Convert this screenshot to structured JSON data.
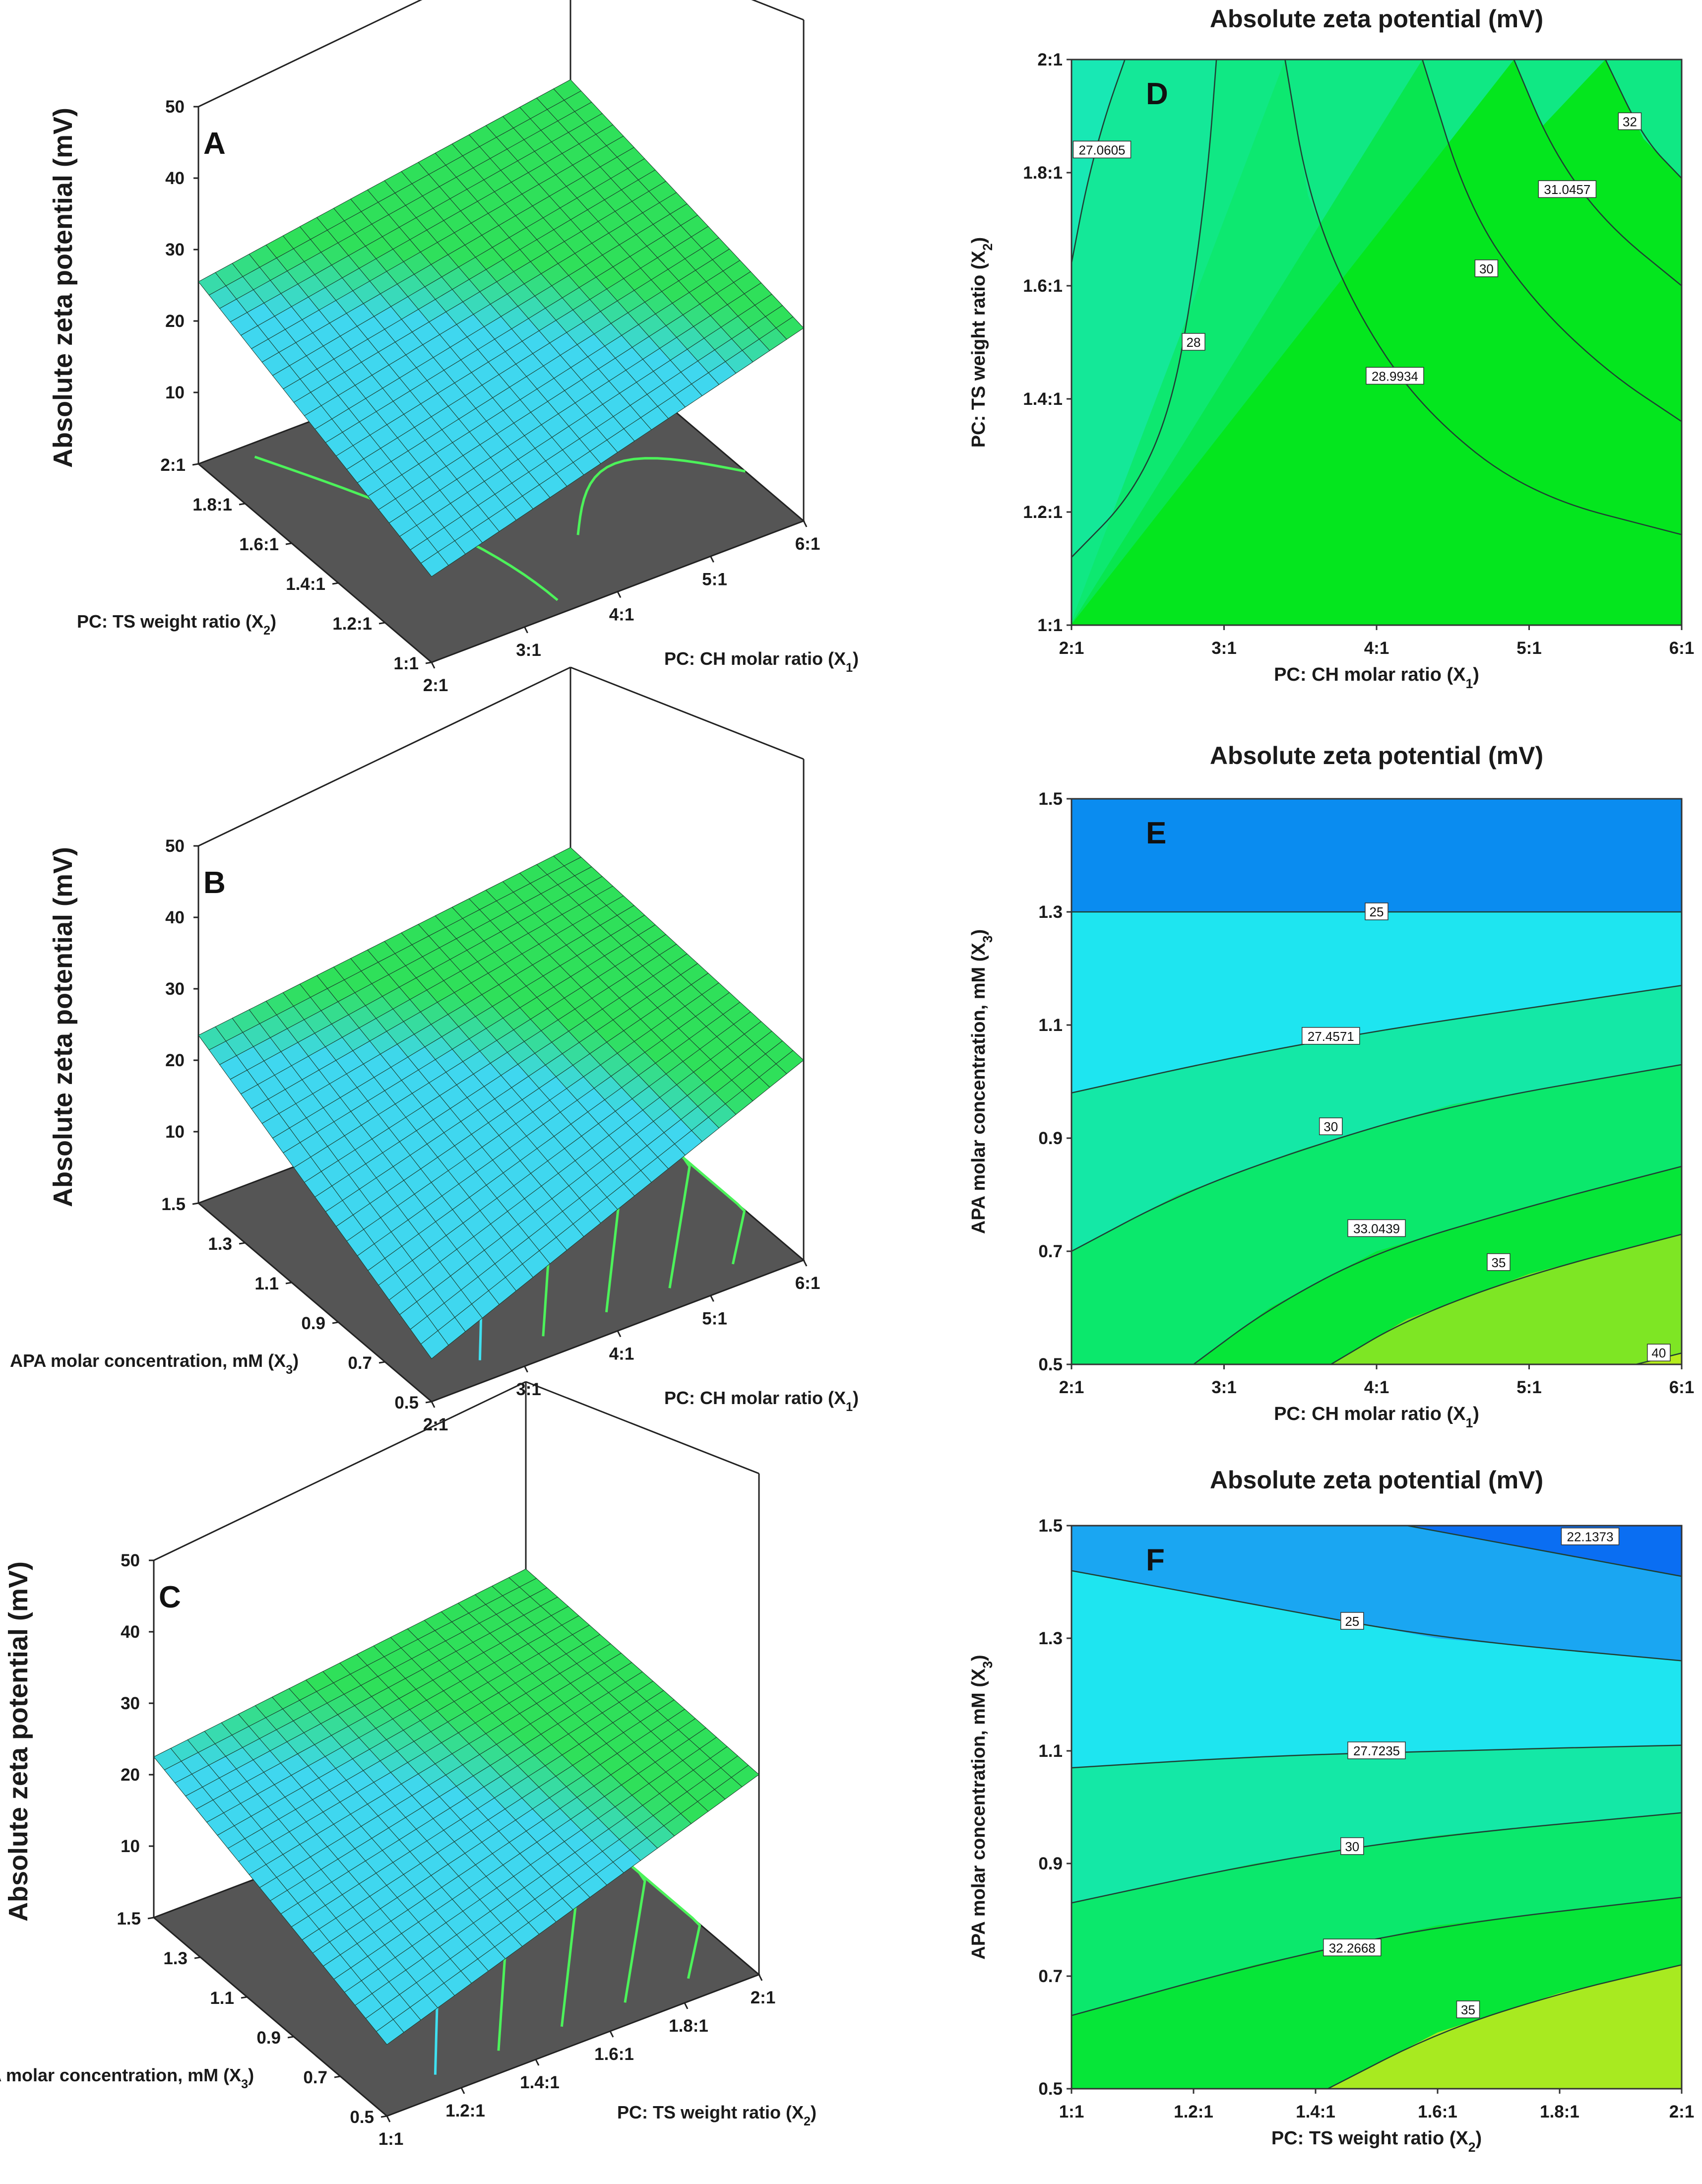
{
  "chart_data": [
    {
      "id": "A",
      "type": "surface3d",
      "panel_label": "A",
      "zlabel": "Absolute zeta potential (mV)",
      "z_ticks": [
        "10",
        "20",
        "30",
        "40",
        "50"
      ],
      "zlim": [
        0,
        50
      ],
      "x_label": "PC: CH molar ratio (X",
      "x_sub": "1",
      "x_tail": ")",
      "x_ticks": [
        "2:1",
        "3:1",
        "4:1",
        "5:1",
        "6:1"
      ],
      "y_label": "PC: TS weight ratio (X",
      "y_sub": "2",
      "y_tail": ")",
      "y_ticks": [
        "2:1",
        "1.8:1",
        "1.6:1",
        "1.4:1",
        "1.2:1",
        "1:1"
      ],
      "corner_z": {
        "front": 12.0,
        "left": 25.5,
        "right": 27.0,
        "back": 34.0
      },
      "colors": {
        "low": "#3fd7ef",
        "high": "#2fe05a",
        "floor": "#555555",
        "contour_low": "#3fe0f0",
        "contour_high": "#4cf25a"
      }
    },
    {
      "id": "B",
      "type": "surface3d",
      "panel_label": "B",
      "zlabel": "Absolute zeta potential (mV)",
      "z_ticks": [
        "10",
        "20",
        "30",
        "40",
        "50"
      ],
      "zlim": [
        0,
        50
      ],
      "x_label": "PC: CH molar ratio (X",
      "x_sub": "1",
      "x_tail": ")",
      "x_ticks": [
        "2:1",
        "3:1",
        "4:1",
        "5:1",
        "6:1"
      ],
      "y_label": "APA molar concentration, mM (X",
      "y_sub": "3",
      "y_tail": ")",
      "y_ticks": [
        "1.5",
        "1.3",
        "1.1",
        "0.9",
        "0.7",
        "0.5"
      ],
      "corner_z": {
        "front": 6.0,
        "left": 23.5,
        "right": 28.0,
        "back": 30.0
      },
      "colors": {
        "low": "#3fd7ef",
        "high": "#2fe05a",
        "floor": "#555555",
        "contour_low": "#3fe0f0",
        "contour_high": "#4cf25a"
      }
    },
    {
      "id": "C",
      "type": "surface3d",
      "panel_label": "C",
      "zlabel": "Absolute zeta potential (mV)",
      "z_ticks": [
        "10",
        "20",
        "30",
        "40",
        "50"
      ],
      "zlim": [
        0,
        50
      ],
      "x_label": "PC: TS weight ratio (X",
      "x_sub": "2",
      "x_tail": ")",
      "x_ticks": [
        "1:1",
        "1.2:1",
        "1.4:1",
        "1.6:1",
        "1.8:1",
        "2:1"
      ],
      "y_label": "APA molar concentration, mM (X",
      "y_sub": "3",
      "y_tail": ")",
      "y_ticks": [
        "1.5",
        "1.3",
        "1.1",
        "0.9",
        "0.7",
        "0.5"
      ],
      "corner_z": {
        "front": 10.0,
        "left": 22.5,
        "right": 28.0,
        "back": 29.0
      },
      "colors": {
        "low": "#3fd7ef",
        "high": "#2fe05a",
        "floor": "#555555",
        "contour_low": "#3fe0f0",
        "contour_high": "#4cf25a"
      }
    },
    {
      "id": "D",
      "type": "contour",
      "panel_label": "D",
      "title": "Absolute zeta potential (mV)",
      "xlabel": "PC: CH molar ratio (X",
      "x_sub": "1",
      "x_tail": ")",
      "ylabel": "PC: TS weight ratio (X",
      "y_sub": "2",
      "y_tail": ")",
      "xlim": [
        2,
        6
      ],
      "ylim": [
        1,
        2
      ],
      "x_ticks": [
        {
          "v": 2,
          "t": "2:1"
        },
        {
          "v": 3,
          "t": "3:1"
        },
        {
          "v": 4,
          "t": "4:1"
        },
        {
          "v": 5,
          "t": "5:1"
        },
        {
          "v": 6,
          "t": "6:1"
        }
      ],
      "y_ticks": [
        {
          "v": 1,
          "t": "1:1"
        },
        {
          "v": 1.2,
          "t": "1.2:1"
        },
        {
          "v": 1.4,
          "t": "1.4:1"
        },
        {
          "v": 1.6,
          "t": "1.6:1"
        },
        {
          "v": 1.8,
          "t": "1.8:1"
        },
        {
          "v": 2,
          "t": "2:1"
        }
      ],
      "contours": [
        {
          "level": "27.0605",
          "label_at": [
            2.2,
            1.84
          ],
          "points": [
            [
              2.0,
              1.64
            ],
            [
              2.1,
              1.78
            ],
            [
              2.22,
              1.9
            ],
            [
              2.35,
              2.0
            ]
          ]
        },
        {
          "level": "28",
          "label_at": [
            2.8,
            1.5
          ],
          "points": [
            [
              2.0,
              1.12
            ],
            [
              2.4,
              1.23
            ],
            [
              2.65,
              1.38
            ],
            [
              2.8,
              1.6
            ],
            [
              2.9,
              1.82
            ],
            [
              2.95,
              2.0
            ]
          ]
        },
        {
          "level": "28.9934",
          "label_at": [
            4.12,
            1.44
          ],
          "points": [
            [
              3.4,
              2.0
            ],
            [
              3.55,
              1.76
            ],
            [
              3.85,
              1.56
            ],
            [
              4.3,
              1.38
            ],
            [
              5.0,
              1.23
            ],
            [
              6.0,
              1.16
            ]
          ]
        },
        {
          "level": "30",
          "label_at": [
            4.72,
            1.63
          ],
          "points": [
            [
              4.3,
              2.0
            ],
            [
              4.6,
              1.74
            ],
            [
              5.0,
              1.58
            ],
            [
              5.5,
              1.45
            ],
            [
              6.0,
              1.36
            ]
          ]
        },
        {
          "level": "31.0457",
          "label_at": [
            5.25,
            1.77
          ],
          "points": [
            [
              4.9,
              2.0
            ],
            [
              5.15,
              1.84
            ],
            [
              5.5,
              1.71
            ],
            [
              6.0,
              1.6
            ]
          ]
        },
        {
          "level": "32",
          "label_at": [
            5.66,
            1.89
          ],
          "points": [
            [
              5.5,
              2.0
            ],
            [
              5.75,
              1.86
            ],
            [
              6.0,
              1.79
            ]
          ]
        }
      ],
      "bands": [
        "#18e8b4",
        "#14e898",
        "#10e884",
        "#0de870",
        "#08e650",
        "#04e61e"
      ]
    },
    {
      "id": "E",
      "type": "contour",
      "panel_label": "E",
      "title": "Absolute zeta potential (mV)",
      "xlabel": "PC: CH molar ratio (X",
      "x_sub": "1",
      "x_tail": ")",
      "ylabel": "APA molar concentration, mM (X",
      "y_sub": "3",
      "y_tail": ")",
      "xlim": [
        2,
        6
      ],
      "ylim": [
        0.5,
        1.5
      ],
      "x_ticks": [
        {
          "v": 2,
          "t": "2:1"
        },
        {
          "v": 3,
          "t": "3:1"
        },
        {
          "v": 4,
          "t": "4:1"
        },
        {
          "v": 5,
          "t": "5:1"
        },
        {
          "v": 6,
          "t": "6:1"
        }
      ],
      "y_ticks": [
        {
          "v": 0.5,
          "t": "0.5"
        },
        {
          "v": 0.7,
          "t": "0.7"
        },
        {
          "v": 0.9,
          "t": "0.9"
        },
        {
          "v": 1.1,
          "t": "1.1"
        },
        {
          "v": 1.3,
          "t": "1.3"
        },
        {
          "v": 1.5,
          "t": "1.5"
        }
      ],
      "contours": [
        {
          "level": "25",
          "label_at": [
            4.0,
            1.3
          ],
          "points": [
            [
              2.0,
              1.3
            ],
            [
              4.0,
              1.3
            ],
            [
              6.0,
              1.3
            ]
          ]
        },
        {
          "level": "27.4571",
          "label_at": [
            3.7,
            1.08
          ],
          "points": [
            [
              2.0,
              0.98
            ],
            [
              3.0,
              1.04
            ],
            [
              4.0,
              1.09
            ],
            [
              5.0,
              1.13
            ],
            [
              6.0,
              1.17
            ]
          ]
        },
        {
          "level": "30",
          "label_at": [
            3.7,
            0.92
          ],
          "points": [
            [
              2.0,
              0.7
            ],
            [
              2.7,
              0.8
            ],
            [
              3.5,
              0.88
            ],
            [
              4.5,
              0.96
            ],
            [
              6.0,
              1.03
            ]
          ]
        },
        {
          "level": "33.0439",
          "label_at": [
            4.0,
            0.74
          ],
          "points": [
            [
              2.8,
              0.5
            ],
            [
              3.3,
              0.6
            ],
            [
              4.0,
              0.7
            ],
            [
              5.0,
              0.78
            ],
            [
              6.0,
              0.85
            ]
          ]
        },
        {
          "level": "35",
          "label_at": [
            4.8,
            0.68
          ],
          "points": [
            [
              3.7,
              0.5
            ],
            [
              4.2,
              0.58
            ],
            [
              5.0,
              0.66
            ],
            [
              6.0,
              0.73
            ]
          ]
        },
        {
          "level": "40",
          "label_at": [
            5.85,
            0.52
          ],
          "points": [
            [
              5.7,
              0.5
            ],
            [
              6.0,
              0.52
            ]
          ]
        }
      ],
      "bands": [
        "#0a8cf0",
        "#1ee5f0",
        "#14e8a6",
        "#0be86c",
        "#06e638",
        "#7ee624",
        "#b5ec1c"
      ]
    },
    {
      "id": "F",
      "type": "contour",
      "panel_label": "F",
      "title": "Absolute zeta potential (mV)",
      "xlabel": "PC: TS weight ratio (X",
      "x_sub": "2",
      "x_tail": ")",
      "ylabel": "APA molar concentration, mM (X",
      "y_sub": "3",
      "y_tail": ")",
      "xlim": [
        1,
        2
      ],
      "ylim": [
        0.5,
        1.5
      ],
      "x_ticks": [
        {
          "v": 1,
          "t": "1:1"
        },
        {
          "v": 1.2,
          "t": "1.2:1"
        },
        {
          "v": 1.4,
          "t": "1.4:1"
        },
        {
          "v": 1.6,
          "t": "1.6:1"
        },
        {
          "v": 1.8,
          "t": "1.8:1"
        },
        {
          "v": 2,
          "t": "2:1"
        }
      ],
      "y_ticks": [
        {
          "v": 0.5,
          "t": "0.5"
        },
        {
          "v": 0.7,
          "t": "0.7"
        },
        {
          "v": 0.9,
          "t": "0.9"
        },
        {
          "v": 1.1,
          "t": "1.1"
        },
        {
          "v": 1.3,
          "t": "1.3"
        },
        {
          "v": 1.5,
          "t": "1.5"
        }
      ],
      "contours": [
        {
          "level": "22.1373",
          "label_at": [
            1.85,
            1.48
          ],
          "points": [
            [
              1.55,
              1.5
            ],
            [
              1.75,
              1.46
            ],
            [
              2.0,
              1.41
            ]
          ]
        },
        {
          "level": "25",
          "label_at": [
            1.46,
            1.33
          ],
          "points": [
            [
              1.0,
              1.42
            ],
            [
              1.3,
              1.36
            ],
            [
              1.6,
              1.3
            ],
            [
              2.0,
              1.26
            ]
          ]
        },
        {
          "level": "27.7235",
          "label_at": [
            1.5,
            1.1
          ],
          "points": [
            [
              1.0,
              1.07
            ],
            [
              1.3,
              1.09
            ],
            [
              1.6,
              1.1
            ],
            [
              2.0,
              1.11
            ]
          ]
        },
        {
          "level": "30",
          "label_at": [
            1.46,
            0.93
          ],
          "points": [
            [
              1.0,
              0.83
            ],
            [
              1.3,
              0.9
            ],
            [
              1.6,
              0.95
            ],
            [
              2.0,
              0.99
            ]
          ]
        },
        {
          "level": "32.2668",
          "label_at": [
            1.46,
            0.75
          ],
          "points": [
            [
              1.0,
              0.63
            ],
            [
              1.3,
              0.72
            ],
            [
              1.6,
              0.79
            ],
            [
              2.0,
              0.84
            ]
          ]
        },
        {
          "level": "35",
          "label_at": [
            1.65,
            0.64
          ],
          "points": [
            [
              1.42,
              0.5
            ],
            [
              1.6,
              0.6
            ],
            [
              1.8,
              0.67
            ],
            [
              2.0,
              0.72
            ]
          ]
        }
      ],
      "bands": [
        "#0a6ef2",
        "#1aa6f2",
        "#1ee5f0",
        "#14e8a6",
        "#0be86c",
        "#06e638",
        "#a8ea20"
      ]
    }
  ]
}
